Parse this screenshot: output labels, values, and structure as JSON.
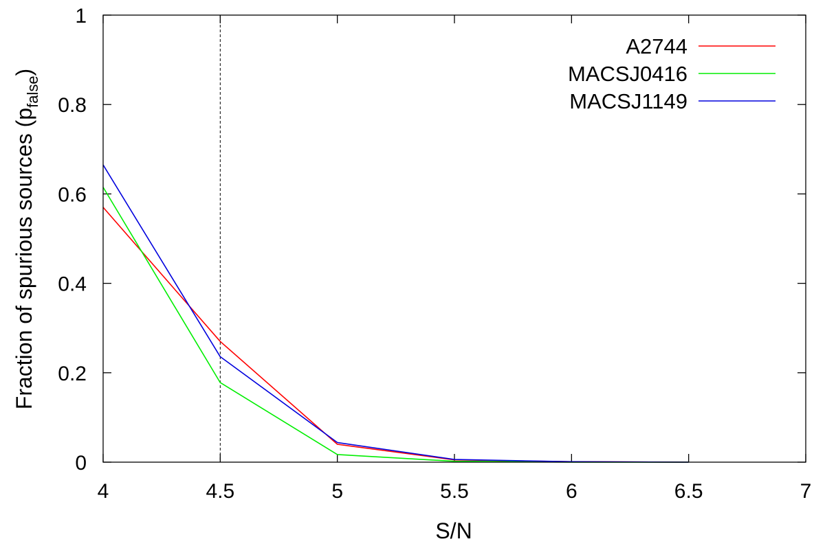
{
  "chart_data": {
    "type": "line",
    "xlabel": "S/N",
    "ylabel": "Fraction of spurious sources (p",
    "ylabel_sub": "false",
    "ylabel_close": ")",
    "xlim": [
      4,
      7
    ],
    "ylim": [
      0,
      1
    ],
    "x_ticks": [
      4,
      4.5,
      5,
      5.5,
      6,
      6.5,
      7
    ],
    "x_tick_labels": [
      "4",
      "4.5",
      "5",
      "5.5",
      "6",
      "6.5",
      "7"
    ],
    "y_ticks": [
      0,
      0.2,
      0.4,
      0.6,
      0.8,
      1
    ],
    "y_tick_labels": [
      "0",
      "0.2",
      "0.4",
      "0.6",
      "0.8",
      "1"
    ],
    "grid": false,
    "legend_position": "top-right",
    "reference_line": {
      "x": 4.5,
      "style": "dashed",
      "color": "#000000"
    },
    "series": [
      {
        "name": "A2744",
        "color": "#ff0000",
        "x": [
          4,
          4.5,
          5,
          5.5,
          6,
          6.5
        ],
        "y": [
          0.57,
          0.27,
          0.04,
          0.005,
          0.001,
          0.0
        ]
      },
      {
        "name": "MACSJ0416",
        "color": "#00ee00",
        "x": [
          4,
          4.5,
          5,
          5.5,
          6,
          6.5
        ],
        "y": [
          0.615,
          0.178,
          0.017,
          0.002,
          0.0,
          0.0
        ]
      },
      {
        "name": "MACSJ1149",
        "color": "#0000dd",
        "x": [
          4,
          4.5,
          5,
          5.5,
          6,
          6.5
        ],
        "y": [
          0.665,
          0.236,
          0.044,
          0.006,
          0.001,
          0.0
        ]
      }
    ]
  }
}
